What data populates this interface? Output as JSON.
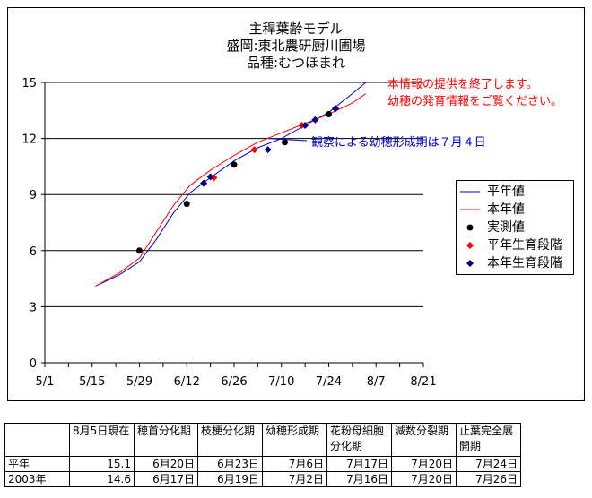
{
  "chart_data": {
    "type": "line",
    "title_lines": [
      "主稈葉齢モデル",
      "盛岡:東北農研厨川圃場",
      "品種:むつほまれ"
    ],
    "x_tick_labels": [
      "5/1",
      "5/15",
      "5/29",
      "6/12",
      "6/26",
      "7/10",
      "7/24",
      "8/7",
      "8/21"
    ],
    "x_tick_days": [
      0,
      14,
      28,
      42,
      56,
      70,
      84,
      98,
      112
    ],
    "y_tick_labels": [
      "0",
      "3",
      "6",
      "9",
      "12",
      "15"
    ],
    "ylim": [
      0,
      15
    ],
    "xlim_days_from_5_1": [
      0,
      112
    ],
    "grid": "horizontal",
    "legend_position": "right",
    "series": [
      {
        "name": "平年値",
        "kind": "line",
        "color": "#0000cc",
        "x": [
          "5/16",
          "5/23",
          "5/29",
          "6/3",
          "6/8",
          "6/13",
          "6/19",
          "6/26",
          "7/3",
          "7/10",
          "7/17",
          "7/24",
          "7/31",
          "8/4"
        ],
        "values": [
          4.1,
          4.7,
          5.4,
          6.6,
          8.0,
          9.1,
          9.9,
          10.8,
          11.5,
          12.0,
          12.7,
          13.4,
          14.4,
          15.0
        ]
      },
      {
        "name": "本年値",
        "kind": "line",
        "color": "#ff0000",
        "x": [
          "5/16",
          "5/23",
          "5/29",
          "6/3",
          "6/8",
          "6/13",
          "6/19",
          "6/26",
          "7/3",
          "7/10",
          "7/17",
          "7/24",
          "7/31",
          "8/4"
        ],
        "values": [
          4.1,
          4.8,
          5.6,
          7.0,
          8.4,
          9.5,
          10.3,
          11.1,
          11.8,
          12.3,
          12.8,
          13.3,
          13.9,
          14.4
        ]
      },
      {
        "name": "実測値",
        "kind": "points",
        "color": "#000000",
        "marker": "circle",
        "x": [
          "5/29",
          "6/12",
          "6/26",
          "7/11",
          "7/24"
        ],
        "values": [
          6.0,
          8.5,
          10.6,
          11.8,
          13.3
        ]
      },
      {
        "name": "平年生育段階",
        "kind": "points",
        "color": "#ff0000",
        "marker": "diamond",
        "x": [
          "6/17",
          "6/20",
          "7/2",
          "7/16",
          "7/26"
        ],
        "values": [
          9.6,
          9.9,
          11.4,
          12.7,
          13.6
        ]
      },
      {
        "name": "本年生育段階",
        "kind": "points",
        "color": "#000080",
        "marker": "diamond",
        "x": [
          "6/17",
          "6/19",
          "7/6",
          "7/17",
          "7/20",
          "7/26"
        ],
        "values": [
          9.6,
          9.95,
          11.4,
          12.7,
          13.0,
          13.6
        ]
      }
    ],
    "annotation": "観察による幼穂形成期は７月４日"
  },
  "notice": {
    "line1": "本情報の提供を終了します。",
    "line2": "幼穂の発育情報をご覧ください。"
  },
  "legend": [
    "平年値",
    "本年値",
    "実測値",
    "平年生育段階",
    "本年生育段階"
  ],
  "table": {
    "headers": [
      "",
      "8月5日現在",
      "穂首分化期",
      "枝梗分化期",
      "幼穂形成期",
      "花粉母細胞分化期",
      "減数分裂期",
      "止葉完全展開期"
    ],
    "rows": [
      [
        "平年",
        "15.1",
        "6月20日",
        "6月23日",
        "7月6日",
        "7月17日",
        "7月20日",
        "7月24日"
      ],
      [
        "2003年",
        "14.6",
        "6月17日",
        "6月19日",
        "7月2日",
        "7月16日",
        "7月20日",
        "7月26日"
      ]
    ]
  }
}
